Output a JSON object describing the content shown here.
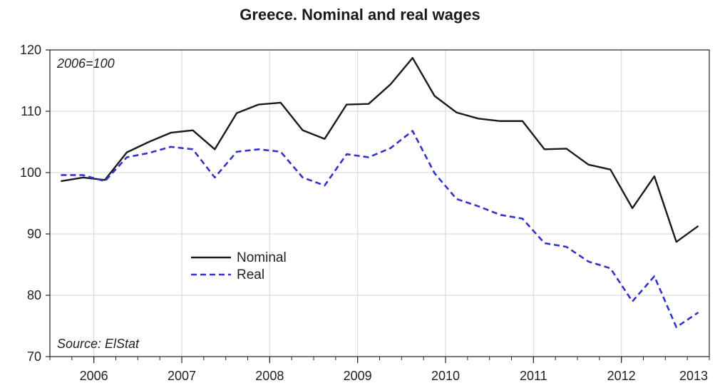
{
  "chart_data": {
    "type": "line",
    "title": "Greece. Nominal and real wages",
    "annotations": {
      "base": "2006=100",
      "source": "Source: ElStat"
    },
    "xlabel": "",
    "ylabel": "",
    "ylim": [
      70,
      120
    ],
    "yticks": [
      70,
      80,
      90,
      100,
      110,
      120
    ],
    "x_range": [
      2006.0,
      2013.5
    ],
    "x_year_labels": [
      "2006",
      "2007",
      "2008",
      "2009",
      "2010",
      "2011",
      "2012",
      "2013"
    ],
    "grid": true,
    "legend_position": "left-center",
    "x": [
      2006.125,
      2006.375,
      2006.625,
      2006.875,
      2007.125,
      2007.375,
      2007.625,
      2007.875,
      2008.125,
      2008.375,
      2008.625,
      2008.875,
      2009.125,
      2009.375,
      2009.625,
      2009.875,
      2010.125,
      2010.375,
      2010.625,
      2010.875,
      2011.125,
      2011.375,
      2011.625,
      2011.875,
      2012.125,
      2012.375,
      2012.625,
      2012.875,
      2013.125,
      2013.375
    ],
    "series": [
      {
        "name": "Nominal",
        "color": "#1a1a1a",
        "dash": "solid",
        "values": [
          98.6,
          99.2,
          98.8,
          103.3,
          105.0,
          106.5,
          106.9,
          103.8,
          109.7,
          111.1,
          111.4,
          106.9,
          105.5,
          111.1,
          111.2,
          114.4,
          118.7,
          112.5,
          109.8,
          108.8,
          108.4,
          108.4,
          103.8,
          103.9,
          101.3,
          100.5,
          94.2,
          99.4,
          88.7,
          91.3
        ]
      },
      {
        "name": "Real",
        "color": "#3333cc",
        "dash": "dashed",
        "values": [
          99.6,
          99.6,
          98.6,
          102.5,
          103.2,
          104.2,
          103.8,
          99.2,
          103.4,
          103.8,
          103.4,
          99.2,
          97.9,
          103.0,
          102.5,
          104.0,
          106.8,
          99.9,
          95.7,
          94.5,
          93.1,
          92.5,
          88.5,
          87.9,
          85.5,
          84.4,
          79.0,
          83.1,
          74.8,
          77.2
        ]
      }
    ]
  }
}
